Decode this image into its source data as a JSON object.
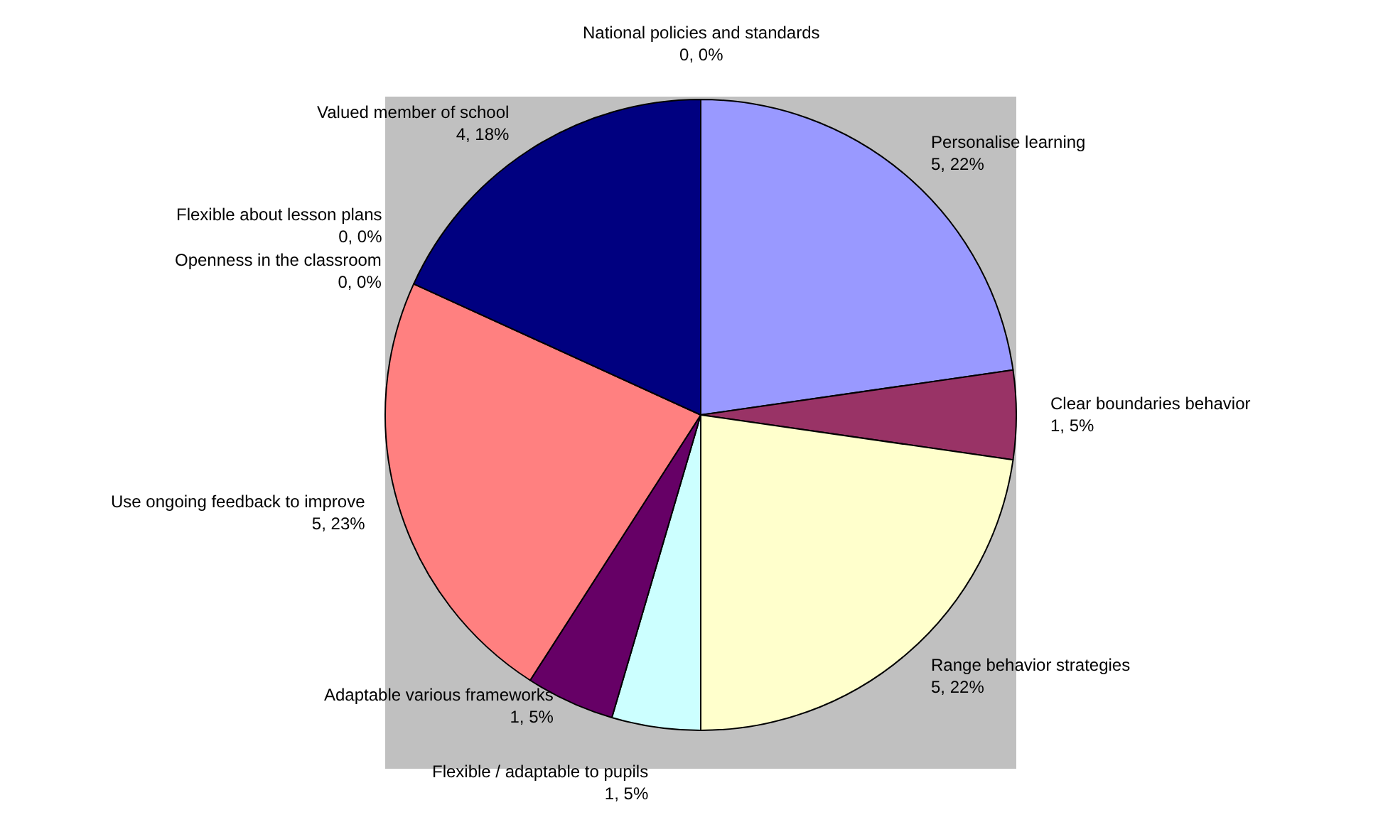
{
  "chart_data": {
    "type": "pie",
    "categories": [
      "National policies and standards",
      "Personalise learning",
      "Clear boundaries behavior",
      "Range behavior strategies",
      "Flexible / adaptable to pupils",
      "Adaptable various frameworks",
      "Use ongoing feedback to improve",
      "Openness in the classroom",
      "Flexible about lesson plans",
      "Valued member of school"
    ],
    "values": [
      0,
      5,
      1,
      5,
      1,
      1,
      5,
      0,
      0,
      4
    ],
    "colors": [
      "#c0c0c0",
      "#9999ff",
      "#993366",
      "#ffffcc",
      "#ccffff",
      "#660066",
      "#ff8080",
      "#c0c0c0",
      "#c0c0c0",
      "#000080"
    ],
    "value_labels": [
      "0, 0%",
      "5, 22%",
      "1, 5%",
      "5, 22%",
      "1, 5%",
      "1, 5%",
      "5, 23%",
      "0, 0%",
      "0, 0%",
      "4, 18%"
    ],
    "legend": false
  }
}
